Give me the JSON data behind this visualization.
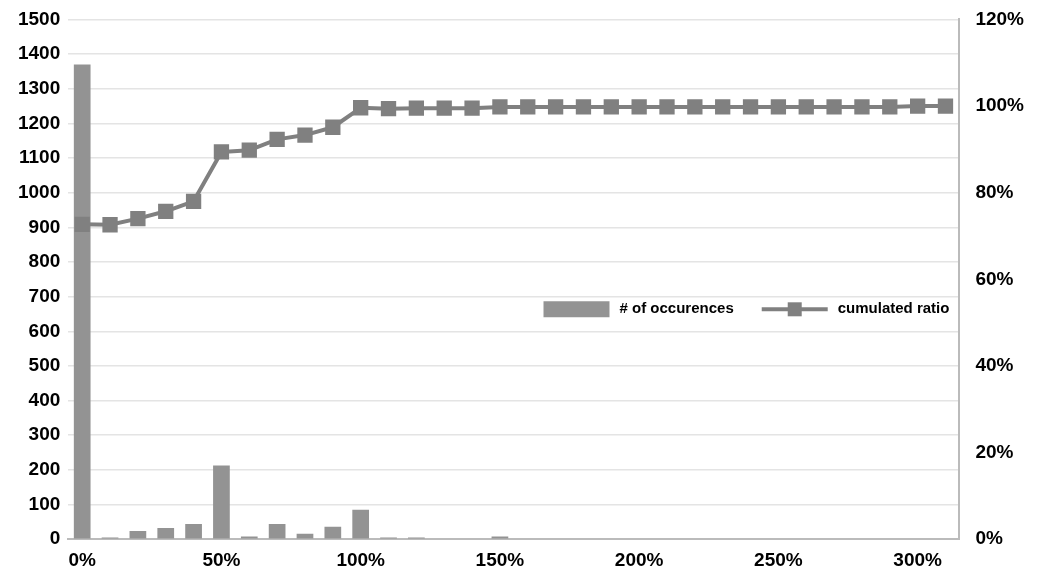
{
  "chart_data": {
    "type": "bar",
    "categories": [
      "0%",
      null,
      null,
      null,
      null,
      "50%",
      null,
      null,
      null,
      null,
      "100%",
      null,
      null,
      null,
      null,
      "150%",
      null,
      null,
      null,
      null,
      "200%",
      null,
      null,
      null,
      null,
      "250%",
      null,
      null,
      null,
      null,
      "300%",
      null
    ],
    "series": [
      {
        "name": "# of occurences",
        "color": "#939393",
        "values": [
          1370,
          5,
          24,
          32,
          44,
          213,
          8,
          44,
          16,
          36,
          85,
          5,
          5,
          0,
          0,
          8,
          0,
          0,
          0,
          0,
          0,
          0,
          0,
          0,
          2,
          0,
          0,
          0,
          2,
          0,
          2,
          2
        ]
      },
      {
        "name": "cumulated ratio",
        "type": "line",
        "axis": "y2",
        "color": "#808080",
        "values": [
          72.7,
          72.6,
          74.0,
          75.7,
          78.0,
          89.4,
          89.8,
          92.3,
          93.3,
          95.1,
          99.6,
          99.4,
          99.5,
          99.5,
          99.5,
          99.8,
          99.8,
          99.8,
          99.8,
          99.8,
          99.8,
          99.8,
          99.8,
          99.8,
          99.8,
          99.8,
          99.8,
          99.8,
          99.8,
          99.8,
          100,
          100
        ]
      }
    ],
    "ylim": [
      0,
      1500
    ],
    "yticks": [
      0,
      100,
      200,
      300,
      400,
      500,
      600,
      700,
      800,
      900,
      1000,
      1100,
      1200,
      1300,
      1400,
      1500
    ],
    "y2lim": [
      0,
      120
    ],
    "y2ticks": [
      {
        "value": 0,
        "label": "0%"
      },
      {
        "value": 20,
        "label": "20%"
      },
      {
        "value": 40,
        "label": "40%"
      },
      {
        "value": 60,
        "label": "60%"
      },
      {
        "value": 80,
        "label": "80%"
      },
      {
        "value": 100,
        "label": "100%"
      },
      {
        "value": 120,
        "label": "120%"
      }
    ],
    "grid": "y",
    "legend": "right",
    "marker": "square",
    "line_style": "solid"
  }
}
